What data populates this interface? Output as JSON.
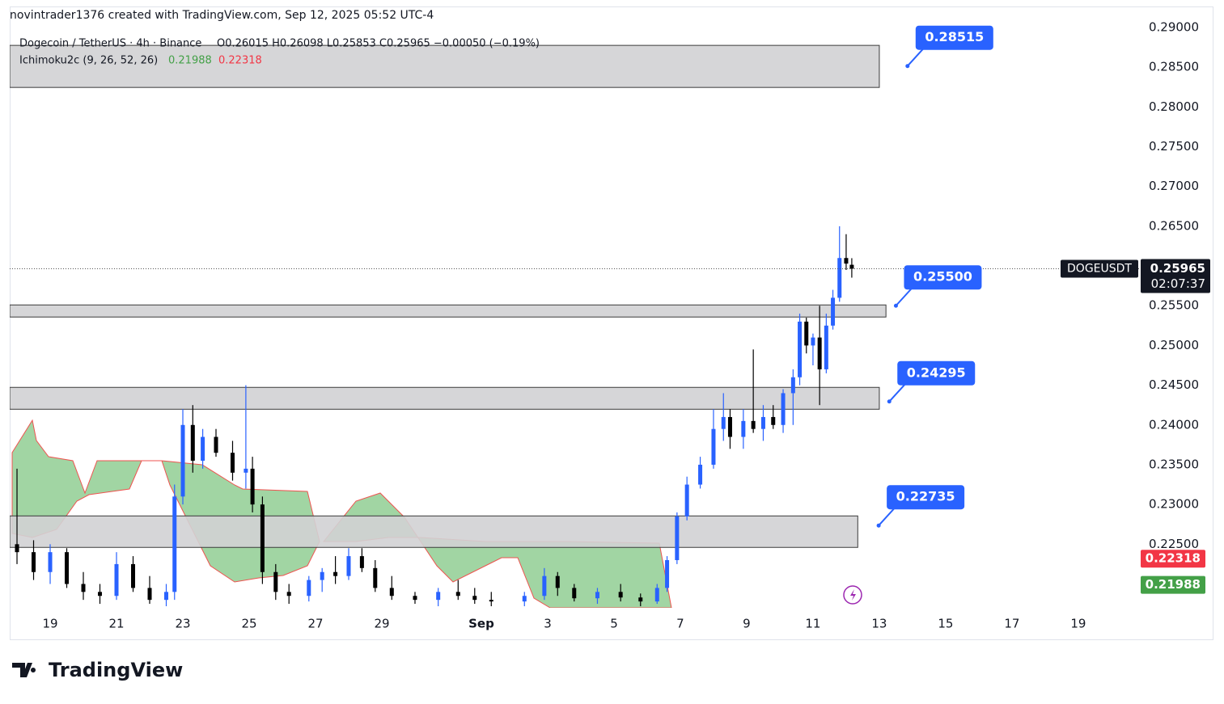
{
  "header": {
    "credit": "novintrader1376 created with TradingView.com, Sep 12, 2025 05:52 UTC-4",
    "logo": "TradingView"
  },
  "chart_data": {
    "type": "candlestick",
    "legend": {
      "symbol": "Dogecoin / TetherUS · 4h · Binance",
      "ohlc": "O0.26015  H0.26098  L0.25853  C0.25965  −0.00050 (−0.19%)",
      "indicator": "Ichimoku2c (9, 26, 52, 26)"
    },
    "x": [
      -1,
      -0.5,
      0,
      0.5,
      1,
      1.5,
      2,
      2.5,
      3,
      3.5,
      3.75,
      4,
      4.3,
      4.6,
      5,
      5.5,
      5.9,
      6.1,
      6.4,
      6.8,
      7.2,
      7.8,
      8.2,
      8.6,
      9,
      9.4,
      9.8,
      10.3,
      11,
      11.7,
      12.3,
      12.8,
      13.3,
      14.3,
      14.9,
      15.3,
      15.8,
      16.5,
      17.2,
      17.8,
      18.3,
      18.6,
      18.9,
      19.2,
      19.6,
      20,
      20.3,
      20.5,
      20.9,
      21.2,
      21.5,
      21.8,
      22.1,
      22.4,
      22.6,
      22.8,
      23,
      23.2,
      23.4,
      23.6,
      23.8,
      24,
      24.17
    ],
    "open": [
      0.225,
      0.224,
      0.2215,
      0.224,
      0.22,
      0.219,
      0.2185,
      0.2225,
      0.2195,
      0.218,
      0.219,
      0.231,
      0.24,
      0.2355,
      0.2385,
      0.2365,
      0.234,
      0.2345,
      0.23,
      0.2215,
      0.219,
      0.2185,
      0.2205,
      0.2215,
      0.221,
      0.2235,
      0.222,
      0.2195,
      0.2185,
      0.218,
      0.219,
      0.2185,
      0.218,
      0.2178,
      0.2185,
      0.221,
      0.2195,
      0.2182,
      0.219,
      0.2183,
      0.2178,
      0.2195,
      0.223,
      0.2285,
      0.2325,
      0.235,
      0.2395,
      0.241,
      0.2385,
      0.2405,
      0.2395,
      0.241,
      0.24,
      0.244,
      0.246,
      0.253,
      0.25,
      0.251,
      0.247,
      0.2525,
      0.256,
      0.261,
      0.26015
    ],
    "high": [
      0.2345,
      0.2255,
      0.225,
      0.2245,
      0.2215,
      0.22,
      0.224,
      0.2235,
      0.221,
      0.22,
      0.2325,
      0.242,
      0.2425,
      0.2395,
      0.2395,
      0.238,
      0.245,
      0.236,
      0.231,
      0.2225,
      0.22,
      0.221,
      0.222,
      0.2235,
      0.2245,
      0.2245,
      0.223,
      0.221,
      0.219,
      0.2195,
      0.2205,
      0.2195,
      0.219,
      0.219,
      0.222,
      0.2215,
      0.22,
      0.2195,
      0.22,
      0.2188,
      0.22,
      0.2235,
      0.229,
      0.2335,
      0.236,
      0.242,
      0.244,
      0.242,
      0.242,
      0.2495,
      0.2425,
      0.2425,
      0.2445,
      0.247,
      0.254,
      0.2535,
      0.2515,
      0.255,
      0.254,
      0.257,
      0.265,
      0.264,
      0.26098
    ],
    "low": [
      0.2225,
      0.2205,
      0.22,
      0.2195,
      0.218,
      0.2175,
      0.218,
      0.219,
      0.2175,
      0.2172,
      0.218,
      0.23,
      0.234,
      0.2345,
      0.236,
      0.233,
      0.232,
      0.229,
      0.22,
      0.218,
      0.2175,
      0.2178,
      0.219,
      0.22,
      0.2205,
      0.2215,
      0.219,
      0.218,
      0.2175,
      0.2172,
      0.218,
      0.2175,
      0.2172,
      0.2172,
      0.218,
      0.2185,
      0.2178,
      0.2175,
      0.2178,
      0.2172,
      0.2175,
      0.219,
      0.2225,
      0.228,
      0.232,
      0.2345,
      0.238,
      0.237,
      0.237,
      0.239,
      0.238,
      0.2395,
      0.239,
      0.24,
      0.245,
      0.249,
      0.2475,
      0.2425,
      0.2465,
      0.252,
      0.2555,
      0.2595,
      0.25853
    ],
    "close": [
      0.224,
      0.2215,
      0.224,
      0.22,
      0.219,
      0.2185,
      0.2225,
      0.2195,
      0.218,
      0.219,
      0.231,
      0.24,
      0.2355,
      0.2385,
      0.2365,
      0.234,
      0.2345,
      0.23,
      0.2215,
      0.219,
      0.2185,
      0.2205,
      0.2215,
      0.221,
      0.2235,
      0.222,
      0.2195,
      0.2185,
      0.218,
      0.219,
      0.2185,
      0.218,
      0.2178,
      0.2185,
      0.221,
      0.2195,
      0.2182,
      0.219,
      0.2183,
      0.2178,
      0.2195,
      0.223,
      0.2285,
      0.2325,
      0.235,
      0.2395,
      0.241,
      0.2385,
      0.2405,
      0.2395,
      0.241,
      0.24,
      0.244,
      0.246,
      0.253,
      0.25,
      0.251,
      0.247,
      0.2525,
      0.256,
      0.261,
      0.2603,
      0.25965
    ],
    "up_color": "#2962ff",
    "down_color": "#000000",
    "ylim": [
      0.217,
      0.29
    ],
    "yticks": [
      {
        "value": 0.225,
        "label": "0.22500"
      },
      {
        "value": 0.23,
        "label": "0.23000"
      },
      {
        "value": 0.235,
        "label": "0.23500"
      },
      {
        "value": 0.24,
        "label": "0.24000"
      },
      {
        "value": 0.245,
        "label": "0.24500"
      },
      {
        "value": 0.25,
        "label": "0.25000"
      },
      {
        "value": 0.255,
        "label": "0.25500"
      },
      {
        "value": 0.26,
        "label": "0.26000"
      },
      {
        "value": 0.265,
        "label": "0.26500"
      },
      {
        "value": 0.27,
        "label": "0.27000"
      },
      {
        "value": 0.275,
        "label": "0.27500"
      },
      {
        "value": 0.28,
        "label": "0.28000"
      },
      {
        "value": 0.285,
        "label": "0.28500"
      },
      {
        "value": 0.29,
        "label": "0.29000"
      }
    ],
    "xlim": [
      -1.22,
      32.88
    ],
    "xticks": [
      {
        "value": 0,
        "label": "19"
      },
      {
        "value": 2,
        "label": "21"
      },
      {
        "value": 4,
        "label": "23"
      },
      {
        "value": 6,
        "label": "25"
      },
      {
        "value": 8,
        "label": "27"
      },
      {
        "value": 10,
        "label": "29"
      },
      {
        "value": 13,
        "label": "Sep"
      },
      {
        "value": 15,
        "label": "3"
      },
      {
        "value": 17,
        "label": "5"
      },
      {
        "value": 19,
        "label": "7"
      },
      {
        "value": 21,
        "label": "9"
      },
      {
        "value": 23,
        "label": "11"
      },
      {
        "value": 25,
        "label": "13"
      },
      {
        "value": 27,
        "label": "15"
      },
      {
        "value": 29,
        "label": "17"
      },
      {
        "value": 31,
        "label": "19"
      }
    ],
    "zones": [
      {
        "low": 0.28246,
        "high": 0.28775,
        "x_end": 25
      },
      {
        "low": 0.25358,
        "high": 0.2551,
        "x_end": 25.2
      },
      {
        "low": 0.24198,
        "high": 0.24473,
        "x_end": 25
      },
      {
        "low": 0.2246,
        "high": 0.22856,
        "x_end": 24.35
      }
    ],
    "callouts": [
      {
        "value": 0.28515,
        "x": 25.85
      },
      {
        "value": {
          "value": 0.255,
          "label": "0.25500"
        },
        "x": 25.5
      },
      {
        "value": 0.24295,
        "x": 25.3
      },
      {
        "value": 0.22735,
        "x": 24.98
      }
    ],
    "last_price": {
      "symbol": "DOGEUSDT",
      "value": 0.25965,
      "countdown": "02:07:37"
    },
    "ichimoku": {
      "lead_a": {
        "value": 0.21988,
        "color": "#43a047"
      },
      "lead_b": {
        "value": 0.22318,
        "color": "#f23645"
      }
    }
  }
}
